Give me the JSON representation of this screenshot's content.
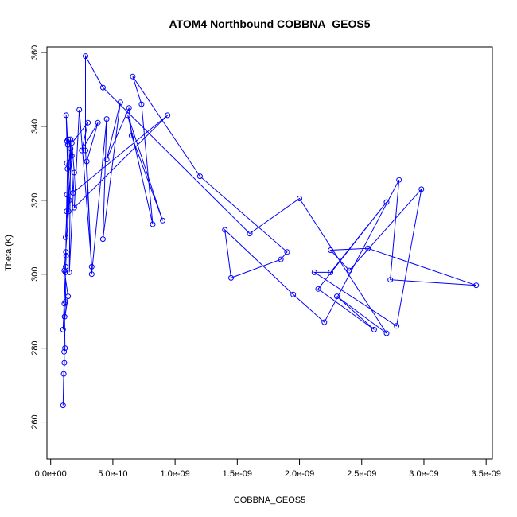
{
  "chart_data": {
    "type": "line",
    "title": "ATOM4 Northbound COBBNA_GEOS5",
    "xlabel": "COBBNA_GEOS5",
    "ylabel": "Theta (K)",
    "xlim": [
      -3e-11,
      3.55e-09
    ],
    "ylim": [
      250,
      361.5
    ],
    "x_ticks": [
      0,
      5e-10,
      1e-09,
      1.5e-09,
      2e-09,
      2.5e-09,
      3e-09,
      3.5e-09
    ],
    "x_tick_labels": [
      "0.0e+00",
      "5.0e-10",
      "1.0e-09",
      "1.5e-09",
      "2.0e-09",
      "2.5e-09",
      "3.0e-09",
      "3.5e-09"
    ],
    "y_ticks": [
      260,
      280,
      300,
      320,
      340,
      360
    ],
    "y_tick_labels": [
      "260",
      "280",
      "300",
      "320",
      "340",
      "360"
    ],
    "grid": false,
    "color": "#0000ff",
    "marker": "open-circle",
    "series": [
      {
        "x": [
          1e-10,
          1.05e-10,
          1.1e-10,
          1.08e-10,
          1.15e-10,
          1.12e-10,
          1.2e-10,
          1.18e-10,
          1.25e-10,
          1.22e-10,
          1.3e-10,
          1.28e-10,
          1.35e-10,
          1.32e-10,
          1.38e-10,
          1.25e-10,
          1.45e-10,
          1.4e-10,
          1.6e-10,
          1.5e-10,
          1.9e-10,
          1.7e-10,
          3e-10,
          2.5e-10,
          3.8e-10,
          2.9e-10,
          3.3e-10,
          4.5e-10,
          4.2e-10,
          5.6e-10,
          4.5e-10,
          6.3e-10,
          6.5e-10,
          9e-10,
          6.2e-10,
          8.2e-10,
          7.3e-10,
          6.6e-10,
          1.2e-09,
          1.9e-09,
          1.85e-09,
          1.45e-09,
          1.4e-09,
          1.95e-09,
          2.2e-09,
          2.8e-09,
          2.73e-09,
          3.42e-09,
          2.55e-09,
          2.25e-09,
          2.4e-09,
          2.98e-09,
          2.78e-09,
          2.12e-09,
          2.25e-09,
          2.7e-09,
          2.15e-09,
          2.6e-09,
          2.3e-09,
          2.7e-09,
          2e-09,
          1.6e-09,
          4.2e-10,
          2.8e-10,
          2.8e-10,
          3.3e-10,
          2.3e-10,
          1.9e-10,
          9.4e-10,
          1.8e-10,
          1.6e-10,
          1.2e-10,
          1.7e-10,
          1.3e-10,
          1.5e-10,
          1.1e-10,
          1.4e-10,
          1e-10,
          1.2e-10,
          1.1e-10
        ],
        "y": [
          264.5,
          273,
          276,
          279,
          280,
          288.5,
          292.5,
          300.5,
          305,
          306,
          321.5,
          317,
          328.5,
          336,
          335,
          343,
          317,
          336.5,
          334,
          300.5,
          327.5,
          335.5,
          341,
          333.5,
          341,
          330.5,
          300,
          342,
          309.5,
          346.5,
          331,
          345,
          337.5,
          314.5,
          343,
          313.5,
          346,
          353.5,
          326.5,
          306,
          304,
          299,
          312,
          294.5,
          287,
          325.5,
          298.5,
          297,
          307,
          306.5,
          301,
          323,
          286,
          300.5,
          300.5,
          319.5,
          296,
          285,
          294,
          284,
          320.5,
          311,
          350.5,
          359,
          333.5,
          302,
          344.5,
          318,
          343,
          322,
          336.5,
          310,
          332,
          330,
          320,
          301,
          294,
          285,
          302,
          292
        ]
      }
    ]
  }
}
